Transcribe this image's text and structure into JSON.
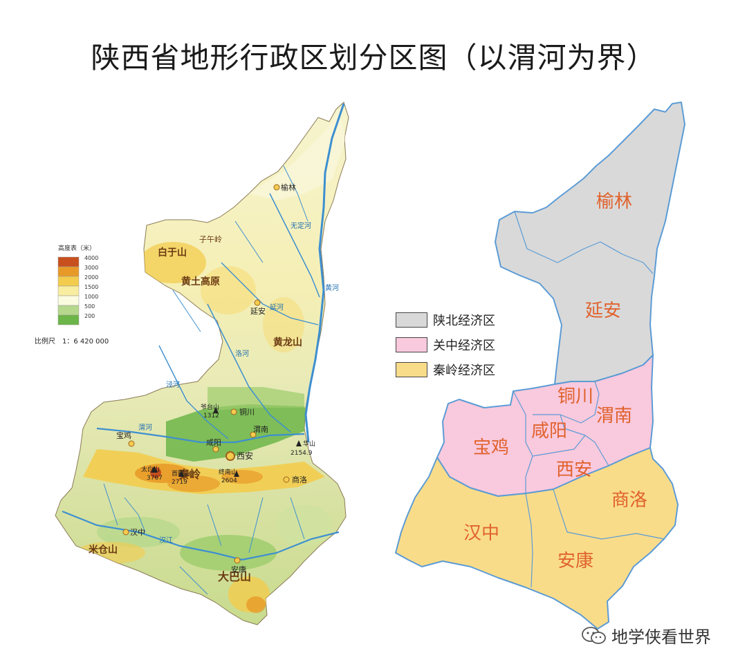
{
  "title": "陕西省地形行政区划分区图（以渭河为界）",
  "elevation_legend": {
    "title": "高度表（米）",
    "levels": [
      "4000",
      "3000",
      "2000",
      "1500",
      "1000",
      "500",
      "200"
    ],
    "colors": [
      "#c8501e",
      "#e89a28",
      "#f3cc4e",
      "#f8eda0",
      "#fbfbe0",
      "#b6d88c",
      "#6cb548"
    ]
  },
  "scale": "比例尺　1：6 420 000",
  "terrain_labels": {
    "baiyushan": "白于山",
    "huangtu": "黄土高原",
    "huanglong": "黄龙山",
    "qinling": "秦岭",
    "daba": "大巴山",
    "micang": "米仓山",
    "ziwu": "子午岭",
    "wuding": "无定河",
    "yanhe": "延河",
    "luohe": "洛河",
    "jinghe": "泾河",
    "weihe": "渭河",
    "hanjiang": "汉江",
    "huanghe": "黄河"
  },
  "peaks": {
    "taibai_name": "太白山",
    "taibai_height": "3767",
    "shouyang_name": "首阳山",
    "shouyang_height": "2719",
    "zhongnan_name": "终南山",
    "zhongnan_height": "2604",
    "huashan_name": "华山",
    "huashan_height": "2154.9",
    "yetai_name": "爷台山",
    "yetai_height": "1312"
  },
  "cities": {
    "yulin": "榆林",
    "yanan": "延安",
    "tongchuan": "铜川",
    "weinan": "渭南",
    "xianyang": "咸阳",
    "xian": "西安",
    "baoji": "宝鸡",
    "shangluo": "商洛",
    "hanzhong": "汉中",
    "ankang": "安康"
  },
  "economic_zones": [
    {
      "label": "陕北经济区",
      "color": "#d9d9d9"
    },
    {
      "label": "关中经济区",
      "color": "#f9c9dd"
    },
    {
      "label": "秦岭经济区",
      "color": "#f9dc8a"
    }
  ],
  "region_label_color": "#e0622d",
  "border_color": "#5b9bd5",
  "watermark": "地学侠看世界",
  "watermark_icon": "wechat-icon"
}
